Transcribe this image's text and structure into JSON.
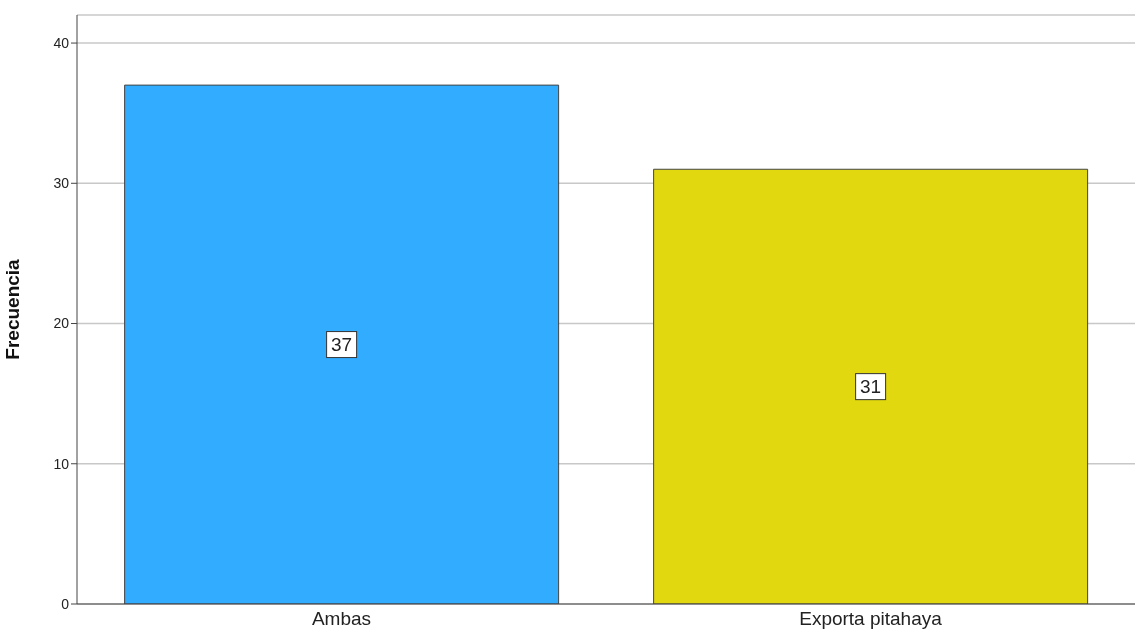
{
  "chart_data": {
    "type": "bar",
    "ylabel": "Frecuencia",
    "categories": [
      "Ambas",
      "Exporta pitahaya"
    ],
    "values": [
      37,
      31
    ],
    "colors": [
      "#31acff",
      "#e2d810"
    ],
    "ylim": [
      0,
      42
    ],
    "yticks": [
      0,
      10,
      20,
      30,
      40
    ],
    "grid": "y",
    "data_labels": true
  }
}
